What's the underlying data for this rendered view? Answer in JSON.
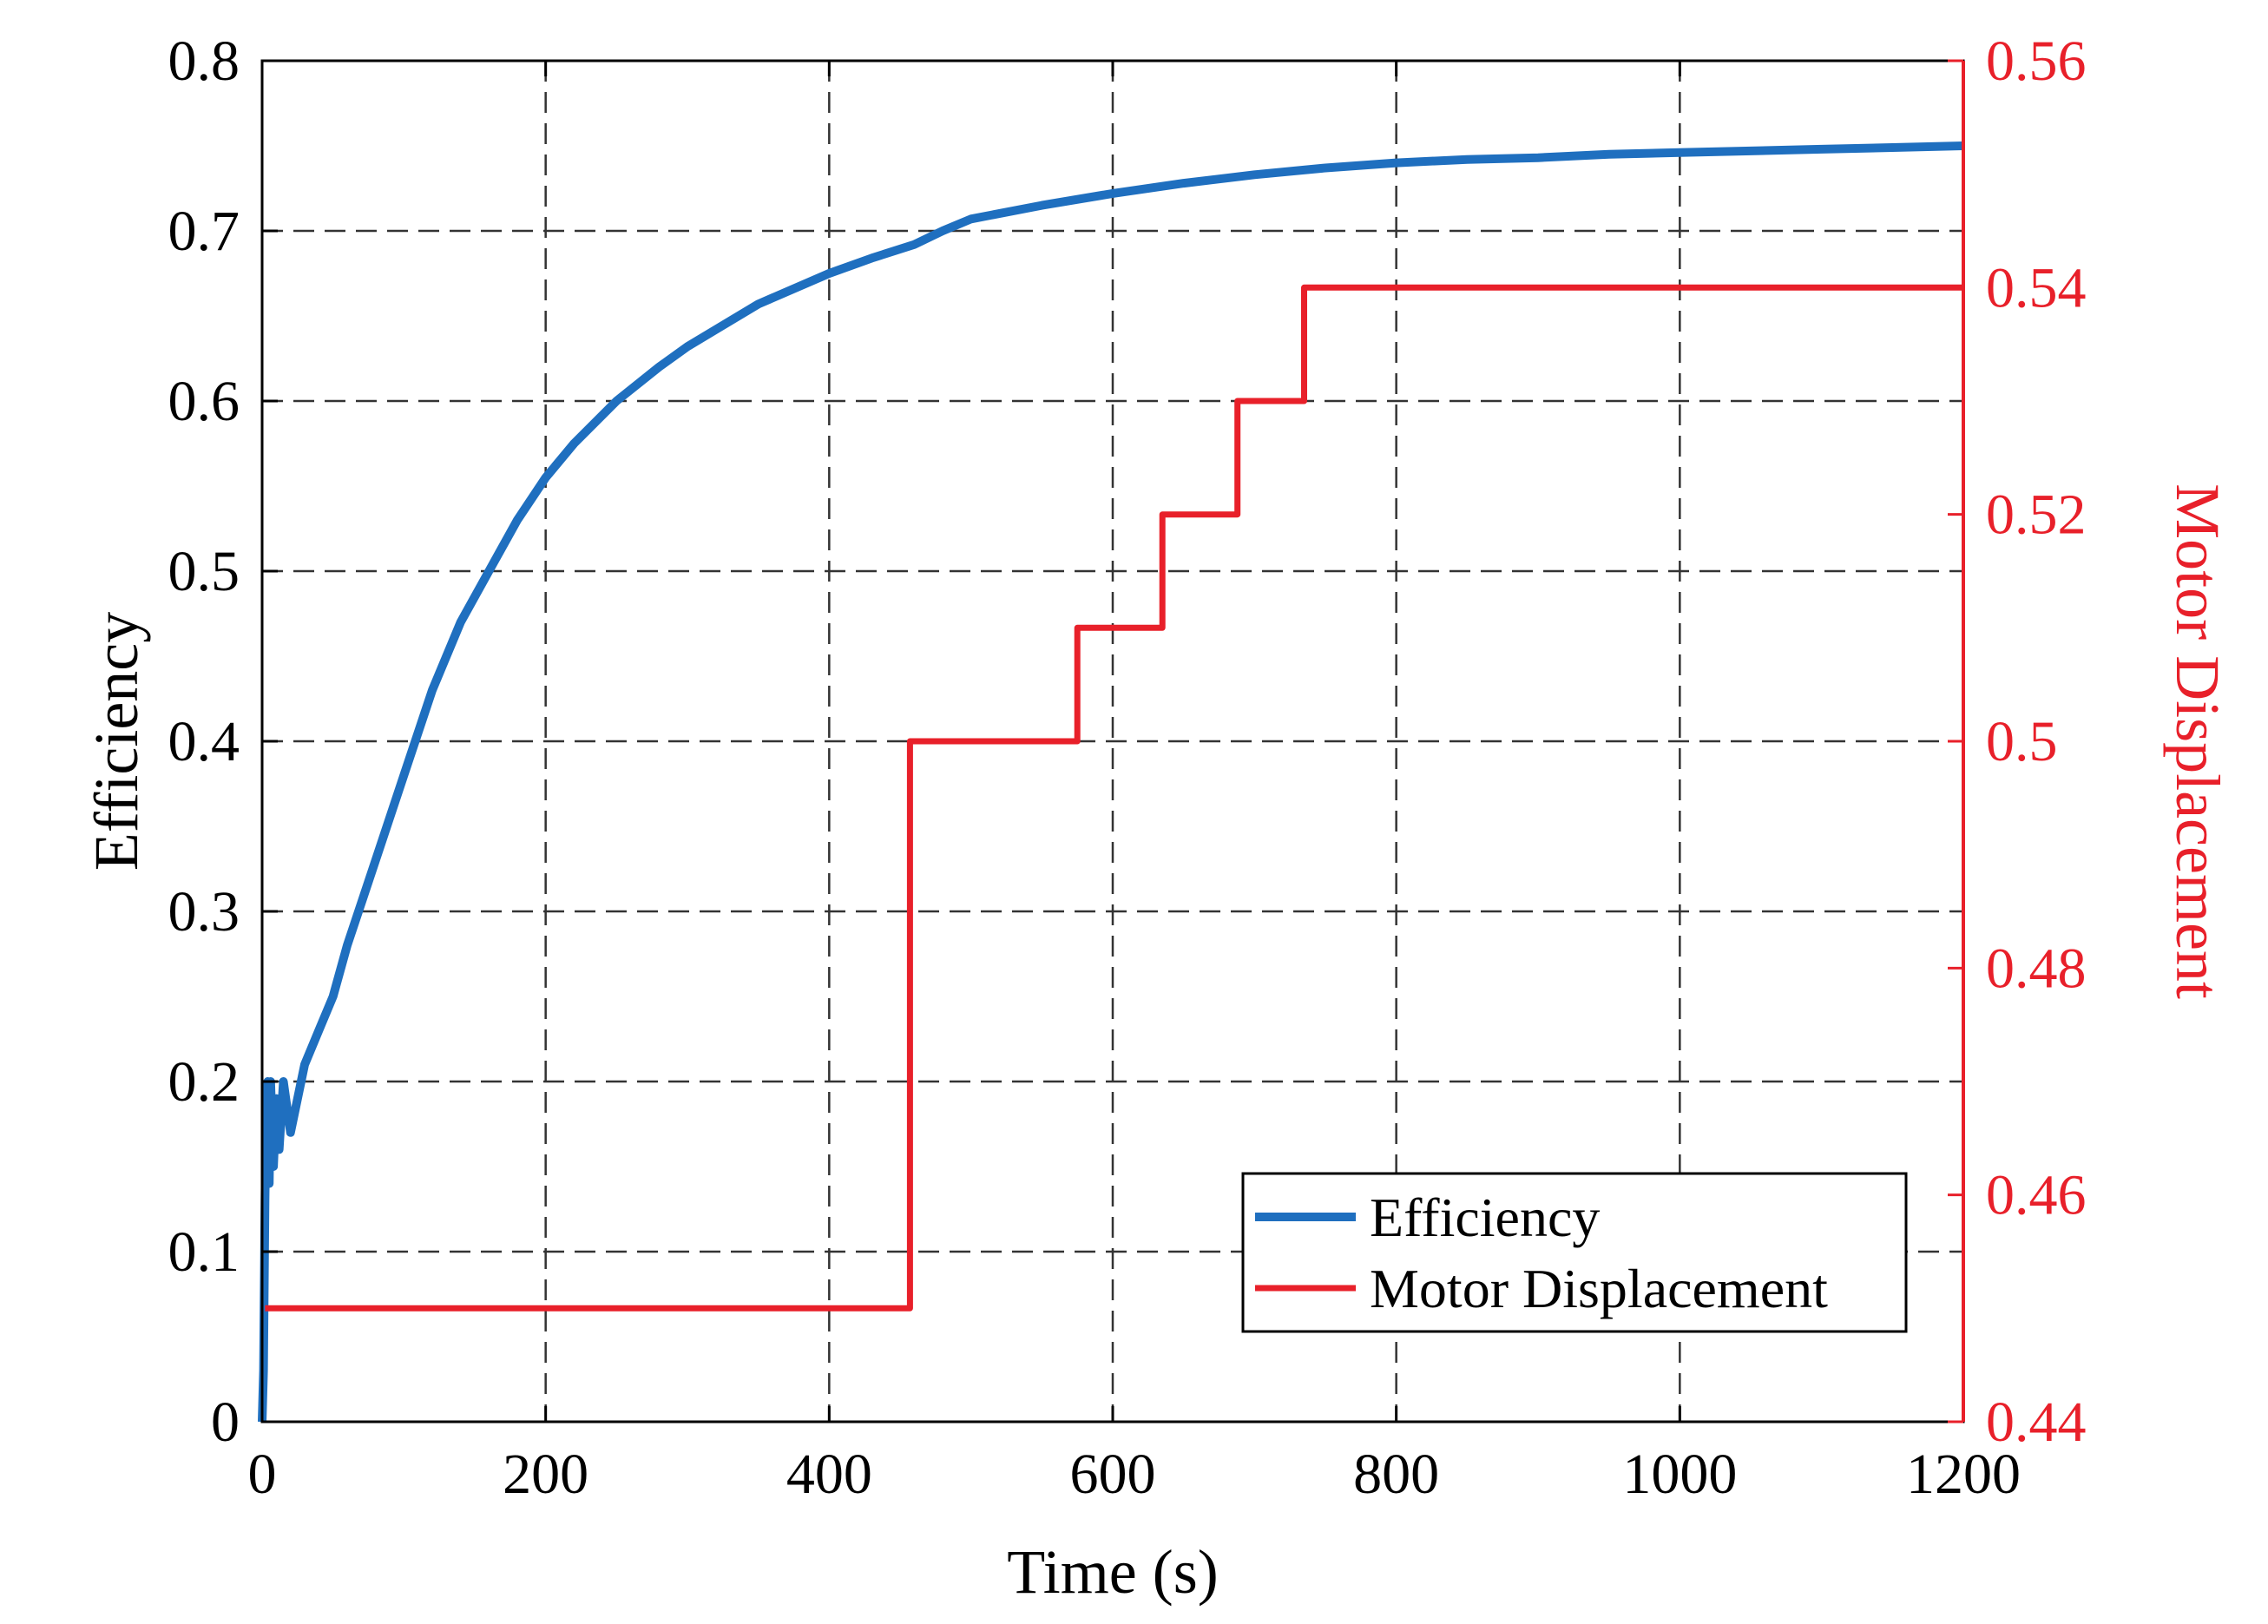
{
  "chart_data": {
    "type": "line",
    "title": "",
    "xlabel": "Time (s)",
    "ylabel": "Efficiency",
    "y2label": "Motor Displacement",
    "xlim": [
      0,
      1200
    ],
    "ylim": [
      0,
      0.8
    ],
    "y2lim": [
      0.44,
      0.56
    ],
    "x_ticks": [
      "0",
      "200",
      "400",
      "600",
      "800",
      "1000",
      "1200"
    ],
    "y_ticks": [
      "0",
      "0.1",
      "0.2",
      "0.3",
      "0.4",
      "0.5",
      "0.6",
      "0.7",
      "0.8"
    ],
    "y2_ticks": [
      "0.44",
      "0.46",
      "0.48",
      "0.5",
      "0.52",
      "0.54",
      "0.56"
    ],
    "grid": true,
    "legend_position": "bottom-right",
    "series": [
      {
        "name": "Efficiency",
        "axis": "left",
        "color": "#1f6fbf",
        "x": [
          0,
          1,
          2,
          3,
          4,
          5,
          6,
          8,
          10,
          12,
          15,
          20,
          30,
          40,
          50,
          60,
          80,
          100,
          120,
          140,
          160,
          180,
          200,
          220,
          250,
          280,
          300,
          350,
          400,
          430,
          460,
          480,
          500,
          550,
          600,
          650,
          700,
          750,
          800,
          850,
          900,
          950,
          1000,
          1050,
          1100,
          1150,
          1200
        ],
        "values": [
          0,
          0.03,
          0.13,
          0.19,
          0.2,
          0.14,
          0.2,
          0.15,
          0.19,
          0.16,
          0.2,
          0.17,
          0.21,
          0.23,
          0.25,
          0.28,
          0.33,
          0.38,
          0.43,
          0.47,
          0.5,
          0.53,
          0.555,
          0.575,
          0.6,
          0.62,
          0.632,
          0.657,
          0.675,
          0.684,
          0.692,
          0.7,
          0.707,
          0.715,
          0.722,
          0.728,
          0.733,
          0.737,
          0.74,
          0.742,
          0.743,
          0.745,
          0.746,
          0.747,
          0.748,
          0.749,
          0.75
        ]
      },
      {
        "name": "Motor Displacement",
        "axis": "right",
        "color": "#e8202a",
        "x": [
          2,
          457,
          457,
          575,
          575,
          635,
          635,
          688,
          688,
          735,
          735,
          1200
        ],
        "values": [
          0.45,
          0.45,
          0.5,
          0.5,
          0.51,
          0.51,
          0.52,
          0.52,
          0.53,
          0.53,
          0.54,
          0.54
        ]
      }
    ],
    "axis_colors": {
      "left": "#000000",
      "right": "#e8202a"
    }
  }
}
